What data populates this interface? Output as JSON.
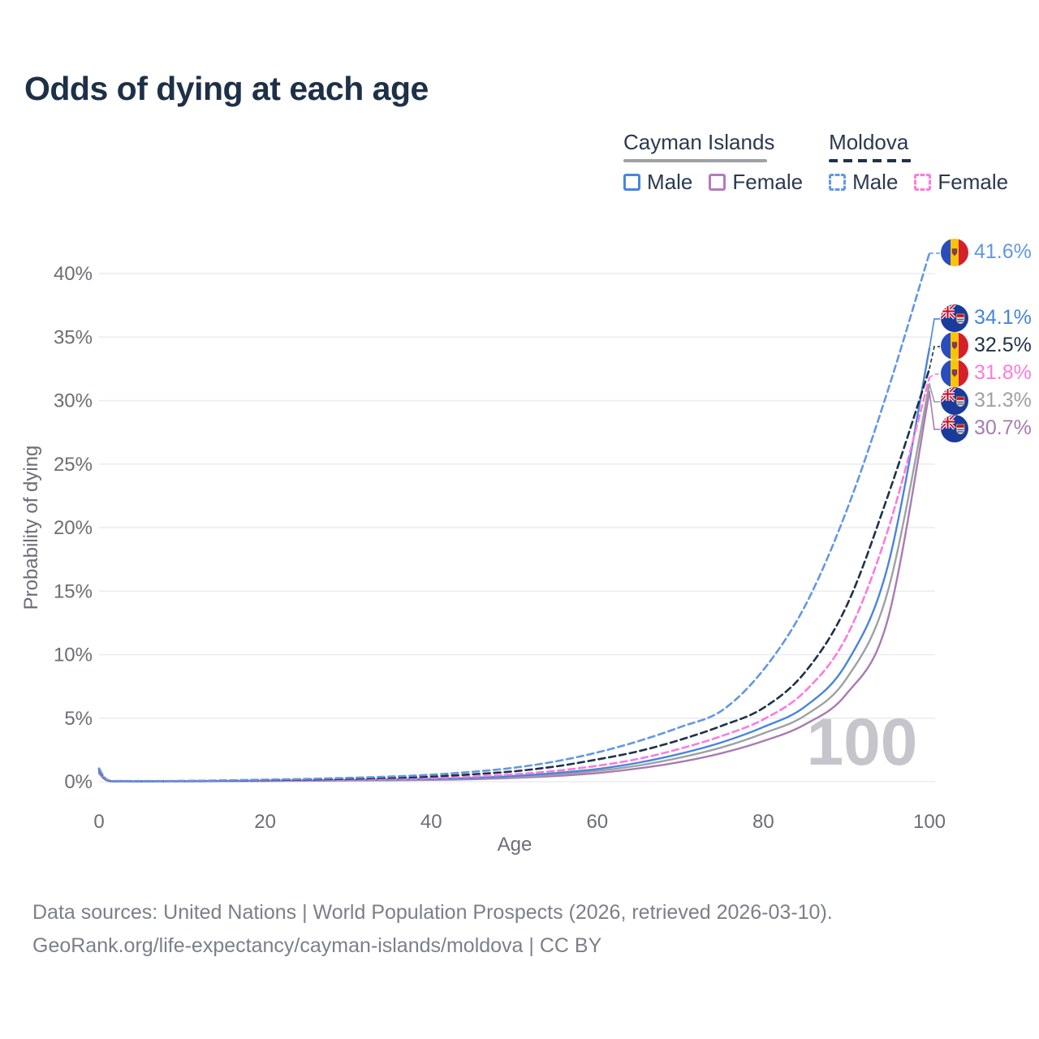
{
  "title": "Odds of dying at each age",
  "legend": {
    "groups": [
      {
        "name": "Cayman Islands",
        "line_style": "solid",
        "underline_color": "#9EA0A4",
        "items": [
          {
            "label": "Male",
            "color": "#4785DC"
          },
          {
            "label": "Female",
            "color": "#B57BBB"
          }
        ]
      },
      {
        "name": "Moldova",
        "line_style": "dashed",
        "underline_color": "#1E3248",
        "items": [
          {
            "label": "Male",
            "color": "#6397E4"
          },
          {
            "label": "Female",
            "color": "#FA7CDC"
          }
        ]
      }
    ]
  },
  "watermark": "100",
  "colors": {
    "title_text": "#1E3048",
    "axis_text": "#6A6E76",
    "gridline": "#EBEBEE",
    "watermark": "#C4C6CB",
    "source_text": "#7A8089"
  },
  "chart_data": {
    "type": "line",
    "title": "Odds of dying at each age",
    "xlabel": "Age",
    "ylabel": "Probability of dying",
    "xlim": [
      0,
      100
    ],
    "ylim": [
      0,
      42
    ],
    "x_ticks": [
      0,
      20,
      40,
      60,
      80,
      100
    ],
    "y_ticks": [
      0,
      5,
      10,
      15,
      20,
      25,
      30,
      35,
      40
    ],
    "y_tick_suffix": "%",
    "grid": "horizontal",
    "legend_position": "top-right",
    "series": [
      {
        "key": "cayman-female",
        "name": "Cayman Islands Female",
        "flag": "cayman",
        "color": "#A87BB0",
        "dashed": false,
        "end_value": 30.7,
        "end_label": "30.7%",
        "points": [
          [
            0,
            0.65
          ],
          [
            1,
            0.08
          ],
          [
            3,
            0.03
          ],
          [
            5,
            0.02
          ],
          [
            10,
            0.03
          ],
          [
            15,
            0.04
          ],
          [
            20,
            0.05
          ],
          [
            25,
            0.07
          ],
          [
            30,
            0.09
          ],
          [
            35,
            0.11
          ],
          [
            40,
            0.14
          ],
          [
            45,
            0.2
          ],
          [
            50,
            0.3
          ],
          [
            55,
            0.45
          ],
          [
            60,
            0.68
          ],
          [
            65,
            1.05
          ],
          [
            70,
            1.55
          ],
          [
            75,
            2.25
          ],
          [
            80,
            3.2
          ],
          [
            85,
            4.5
          ],
          [
            90,
            6.9
          ],
          [
            95,
            12.8
          ],
          [
            100,
            30.7
          ]
        ]
      },
      {
        "key": "cayman-total",
        "name": "Cayman Islands",
        "flag": "cayman",
        "color": "#9EA0A4",
        "dashed": false,
        "end_value": 31.3,
        "end_label": "31.3%",
        "points": [
          [
            0,
            0.72
          ],
          [
            1,
            0.09
          ],
          [
            3,
            0.03
          ],
          [
            5,
            0.03
          ],
          [
            10,
            0.03
          ],
          [
            15,
            0.05
          ],
          [
            20,
            0.07
          ],
          [
            25,
            0.09
          ],
          [
            30,
            0.11
          ],
          [
            35,
            0.14
          ],
          [
            40,
            0.18
          ],
          [
            45,
            0.25
          ],
          [
            50,
            0.37
          ],
          [
            55,
            0.56
          ],
          [
            60,
            0.85
          ],
          [
            65,
            1.28
          ],
          [
            70,
            1.9
          ],
          [
            75,
            2.7
          ],
          [
            80,
            3.8
          ],
          [
            85,
            5.2
          ],
          [
            90,
            8.1
          ],
          [
            95,
            15.0
          ],
          [
            100,
            31.3
          ]
        ]
      },
      {
        "key": "cayman-male",
        "name": "Cayman Islands Male",
        "flag": "cayman",
        "color": "#4785DC",
        "dashed": false,
        "end_value": 34.1,
        "end_label": "34.1%",
        "points": [
          [
            0,
            0.78
          ],
          [
            1,
            0.1
          ],
          [
            3,
            0.04
          ],
          [
            5,
            0.03
          ],
          [
            10,
            0.04
          ],
          [
            15,
            0.06
          ],
          [
            20,
            0.09
          ],
          [
            25,
            0.11
          ],
          [
            30,
            0.14
          ],
          [
            35,
            0.17
          ],
          [
            40,
            0.22
          ],
          [
            45,
            0.3
          ],
          [
            50,
            0.45
          ],
          [
            55,
            0.68
          ],
          [
            60,
            1.0
          ],
          [
            65,
            1.5
          ],
          [
            70,
            2.2
          ],
          [
            75,
            3.1
          ],
          [
            80,
            4.3
          ],
          [
            85,
            5.9
          ],
          [
            90,
            9.3
          ],
          [
            95,
            17.0
          ],
          [
            100,
            34.1
          ]
        ]
      },
      {
        "key": "moldova-female",
        "name": "Moldova Female",
        "flag": "moldova",
        "color": "#FA7CDC",
        "dashed": true,
        "end_value": 31.8,
        "end_label": "31.8%",
        "points": [
          [
            0,
            0.92
          ],
          [
            1,
            0.11
          ],
          [
            3,
            0.04
          ],
          [
            5,
            0.03
          ],
          [
            10,
            0.04
          ],
          [
            15,
            0.06
          ],
          [
            20,
            0.09
          ],
          [
            25,
            0.12
          ],
          [
            30,
            0.16
          ],
          [
            35,
            0.21
          ],
          [
            40,
            0.28
          ],
          [
            45,
            0.4
          ],
          [
            50,
            0.58
          ],
          [
            55,
            0.85
          ],
          [
            60,
            1.25
          ],
          [
            65,
            1.8
          ],
          [
            70,
            2.6
          ],
          [
            75,
            3.6
          ],
          [
            80,
            4.9
          ],
          [
            85,
            7.1
          ],
          [
            90,
            11.4
          ],
          [
            95,
            19.8
          ],
          [
            100,
            31.8
          ]
        ]
      },
      {
        "key": "moldova-total",
        "name": "Moldova",
        "flag": "moldova",
        "color": "#1E3248",
        "dashed": true,
        "end_value": 32.5,
        "end_label": "32.5%",
        "points": [
          [
            0,
            1.0
          ],
          [
            1,
            0.13
          ],
          [
            3,
            0.05
          ],
          [
            5,
            0.04
          ],
          [
            10,
            0.05
          ],
          [
            15,
            0.08
          ],
          [
            20,
            0.12
          ],
          [
            25,
            0.17
          ],
          [
            30,
            0.23
          ],
          [
            35,
            0.3
          ],
          [
            40,
            0.4
          ],
          [
            45,
            0.58
          ],
          [
            50,
            0.82
          ],
          [
            55,
            1.2
          ],
          [
            60,
            1.75
          ],
          [
            65,
            2.4
          ],
          [
            70,
            3.3
          ],
          [
            75,
            4.4
          ],
          [
            80,
            5.8
          ],
          [
            85,
            8.6
          ],
          [
            90,
            13.8
          ],
          [
            95,
            22.5
          ],
          [
            100,
            32.5
          ]
        ]
      },
      {
        "key": "moldova-male",
        "name": "Moldova Male",
        "flag": "moldova",
        "color": "#6397E4",
        "dashed": true,
        "end_value": 41.6,
        "end_label": "41.6%",
        "points": [
          [
            0,
            1.05
          ],
          [
            1,
            0.15
          ],
          [
            3,
            0.06
          ],
          [
            5,
            0.05
          ],
          [
            10,
            0.06
          ],
          [
            15,
            0.1
          ],
          [
            20,
            0.16
          ],
          [
            25,
            0.22
          ],
          [
            30,
            0.3
          ],
          [
            35,
            0.4
          ],
          [
            40,
            0.55
          ],
          [
            45,
            0.78
          ],
          [
            50,
            1.1
          ],
          [
            55,
            1.6
          ],
          [
            60,
            2.3
          ],
          [
            65,
            3.2
          ],
          [
            70,
            4.3
          ],
          [
            75,
            5.6
          ],
          [
            80,
            8.8
          ],
          [
            85,
            13.8
          ],
          [
            90,
            21.3
          ],
          [
            95,
            30.8
          ],
          [
            100,
            41.6
          ]
        ]
      }
    ]
  },
  "source": {
    "line1": "Data sources: United Nations | World Population Prospects (2026, retrieved 2026-03-10).",
    "line2": "GeoRank.org/life-expectancy/cayman-islands/moldova | CC BY"
  }
}
